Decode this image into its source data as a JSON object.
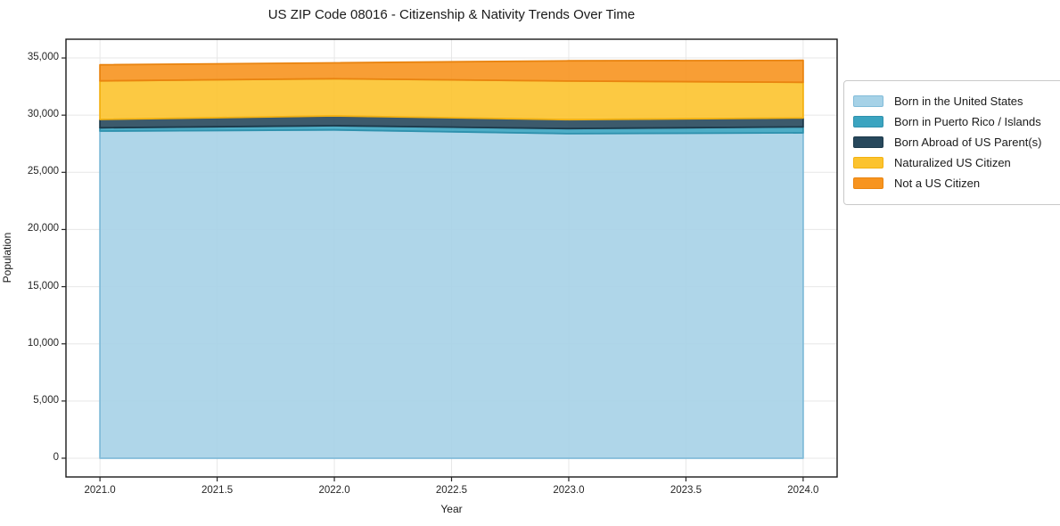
{
  "title": "US ZIP Code 08016 - Citizenship & Nativity Trends Over Time",
  "chart_data": {
    "type": "area",
    "stacked": true,
    "title": "US ZIP Code 08016 - Citizenship & Nativity Trends Over Time",
    "xlabel": "Year",
    "ylabel": "Population",
    "x": [
      2021,
      2022,
      2023,
      2024
    ],
    "series": [
      {
        "name": "Born in the United States",
        "values": [
          28610,
          28715,
          28380,
          28455
        ],
        "fill": "#a6d2e7",
        "edge": "#82bcd9"
      },
      {
        "name": "Born in Puerto Rico / Islands",
        "values": [
          290,
          365,
          445,
          520
        ],
        "fill": "#3ba4c0",
        "edge": "#2e91ad"
      },
      {
        "name": "Born Abroad of US Parent(s)",
        "values": [
          725,
          855,
          780,
          780
        ],
        "fill": "#27485c",
        "edge": "#1d3a4b"
      },
      {
        "name": "Naturalized US Citizen",
        "values": [
          3375,
          3250,
          3375,
          3120
        ],
        "fill": "#fcc32e",
        "edge": "#f3b111"
      },
      {
        "name": "Not a US Citizen",
        "values": [
          1400,
          1390,
          1770,
          1915
        ],
        "fill": "#f7941f",
        "edge": "#e98410"
      }
    ],
    "totals": [
      34400,
      34575,
      34750,
      34790
    ],
    "xlim": [
      2020.855,
      2024.145
    ],
    "ylim": [
      -1640,
      36640
    ],
    "xticks": [
      2021.0,
      2021.5,
      2022.0,
      2022.5,
      2023.0,
      2023.5,
      2024.0
    ],
    "xtick_labels": [
      "2021.0",
      "2021.5",
      "2022.0",
      "2022.5",
      "2023.0",
      "2023.5",
      "2024.0"
    ],
    "yticks": [
      0,
      5000,
      10000,
      15000,
      20000,
      25000,
      30000,
      35000
    ],
    "ytick_labels": [
      "0",
      "5,000",
      "10,000",
      "15,000",
      "20,000",
      "25,000",
      "30,000",
      "35,000"
    ],
    "grid": true,
    "legend_position": "right-outside-top"
  },
  "colors": {
    "background": "#ffffff",
    "grid": "#e7e7e7",
    "spine": "#1a1a1a",
    "tick": "#262626",
    "text": "#1a1a1a",
    "legend_border": "#c9c9c9"
  }
}
